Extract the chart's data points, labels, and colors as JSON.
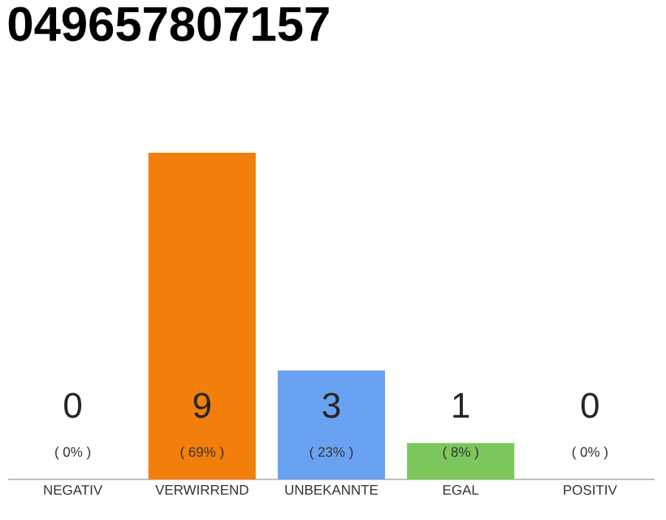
{
  "chart_data": {
    "type": "bar",
    "title": "049657807157",
    "categories": [
      "NEGATIV",
      "VERWIRREND",
      "UNBEKANNTE",
      "EGAL",
      "POSITIV"
    ],
    "values": [
      0,
      9,
      3,
      1,
      0
    ],
    "colors": [
      "#cccccc",
      "#f27f0c",
      "#6aa2f2",
      "#7cc75b",
      "#cccccc"
    ],
    "ylim": [
      0,
      9
    ],
    "tick_labels": "x",
    "data_labels": true,
    "annotations": [
      "( 0% )",
      "( 69% )",
      "( 23% )",
      "( 8% )",
      "( 0% )"
    ]
  }
}
